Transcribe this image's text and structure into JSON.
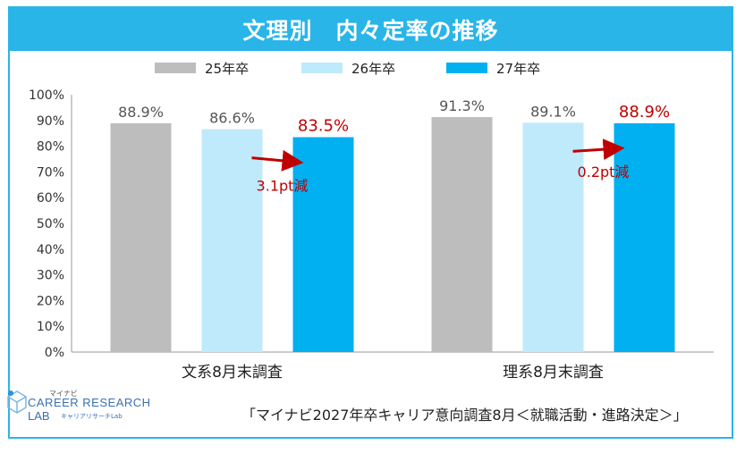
{
  "title": "文理別　内々定率の推移",
  "source": "「マイナビ2027年卒キャリア意向調査8月＜就職活動・進路決定＞」",
  "logo": {
    "top": "マイナビ",
    "main": "CAREER RESEARCH",
    "lab": "LAB",
    "sub": "キャリアリサーチLab"
  },
  "colors": {
    "accent": "#29B5E8",
    "series": [
      "#BDBDBD",
      "#BFEAFB",
      "#00B0F0"
    ],
    "annotation": "#C00000"
  },
  "chart_data": {
    "type": "bar",
    "categories": [
      "文系8月末調査",
      "理系8月末調査"
    ],
    "series": [
      {
        "name": "25年卒",
        "values": [
          88.9,
          91.3
        ]
      },
      {
        "name": "26年卒",
        "values": [
          86.6,
          89.1
        ]
      },
      {
        "name": "27年卒",
        "values": [
          83.5,
          88.9
        ]
      }
    ],
    "data_labels": [
      [
        "88.9%",
        "86.6%",
        "83.5%"
      ],
      [
        "91.3%",
        "89.1%",
        "88.9%"
      ]
    ],
    "yticks": [
      "0%",
      "10%",
      "20%",
      "30%",
      "40%",
      "50%",
      "60%",
      "70%",
      "80%",
      "90%",
      "100%"
    ],
    "ylim": [
      0,
      100
    ],
    "annotations": [
      "3.1pt減",
      "0.2pt減"
    ],
    "legend_position": "top",
    "grid": false
  }
}
